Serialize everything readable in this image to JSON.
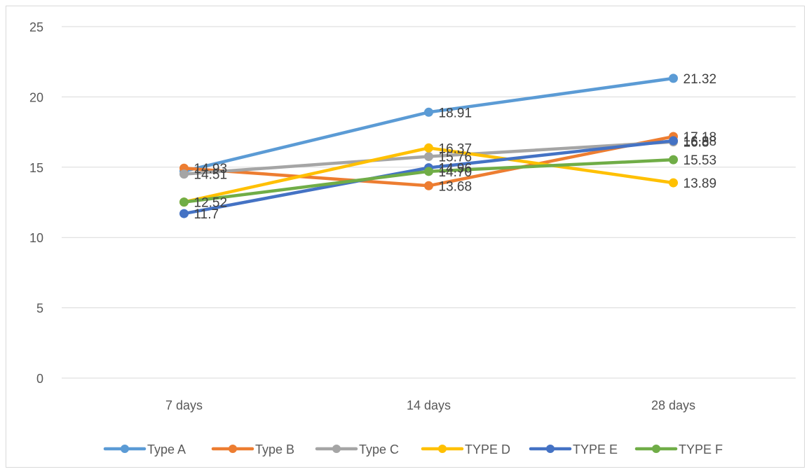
{
  "chart_data": {
    "type": "line",
    "title": "",
    "xlabel": "",
    "ylabel": "",
    "categories": [
      "7 days",
      "14 days",
      "28 days"
    ],
    "y_ticks": [
      "0",
      "5",
      "10",
      "15",
      "20",
      "25"
    ],
    "ylim": [
      0,
      25
    ],
    "grid": "horizontal",
    "legend_position": "bottom",
    "data_labels": true,
    "series": [
      {
        "name": "Type A",
        "values": [
          14.71,
          18.91,
          21.32
        ],
        "labels": [
          "",
          "18.91",
          "21.32"
        ],
        "color": "#5b9bd5"
      },
      {
        "name": "Type B",
        "values": [
          14.93,
          13.68,
          17.18
        ],
        "labels": [
          "14.93",
          "13.68",
          "17.18"
        ],
        "color": "#ed7d31"
      },
      {
        "name": "Type C",
        "values": [
          14.51,
          15.76,
          16.8
        ],
        "labels": [
          "14.51",
          "15.76",
          "16.8"
        ],
        "color": "#a5a5a5"
      },
      {
        "name": "TYPE D",
        "values": [
          12.52,
          16.37,
          13.89
        ],
        "labels": [
          "",
          "16.37",
          "13.89"
        ],
        "color": "#ffc000"
      },
      {
        "name": "TYPE E",
        "values": [
          11.7,
          14.96,
          16.88
        ],
        "labels": [
          "11.7",
          "14.96",
          "16.88"
        ],
        "color": "#4472c4"
      },
      {
        "name": "TYPE F",
        "values": [
          12.52,
          14.7,
          15.53
        ],
        "labels": [
          "12.52",
          "14.70",
          "15.53"
        ],
        "color": "#70ad47"
      }
    ]
  }
}
